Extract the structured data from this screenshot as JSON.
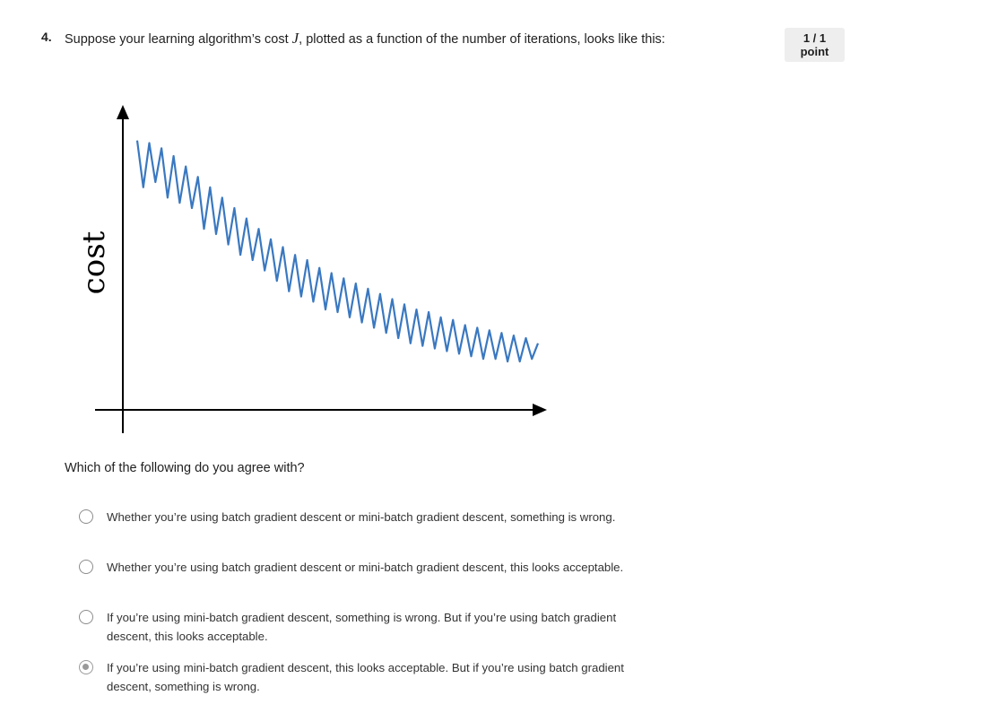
{
  "question": {
    "number": "4.",
    "text_before": "Suppose your learning algorithm’s cost ",
    "math_symbol": "J",
    "text_after": ", plotted as a function of the number of iterations, looks like this:",
    "points": "1 / 1 point",
    "prompt": "Which of the following do you agree with?"
  },
  "chart_data": {
    "type": "line",
    "ylabel": "cost",
    "xlabel": "",
    "description_style": "noisy decreasing curve, hand-drawn",
    "series": [
      {
        "color": "#3a78c0",
        "values": [
          0.96,
          0.78,
          0.95,
          0.8,
          0.93,
          0.74,
          0.9,
          0.72,
          0.86,
          0.7,
          0.82,
          0.62,
          0.78,
          0.6,
          0.74,
          0.56,
          0.7,
          0.52,
          0.66,
          0.5,
          0.62,
          0.46,
          0.58,
          0.42,
          0.55,
          0.38,
          0.52,
          0.36,
          0.5,
          0.34,
          0.47,
          0.31,
          0.45,
          0.3,
          0.43,
          0.28,
          0.41,
          0.26,
          0.39,
          0.24,
          0.37,
          0.22,
          0.35,
          0.2,
          0.33,
          0.18,
          0.31,
          0.17,
          0.3,
          0.16,
          0.28,
          0.15,
          0.27,
          0.14,
          0.25,
          0.13,
          0.24,
          0.12,
          0.23,
          0.12,
          0.22,
          0.11,
          0.21,
          0.11,
          0.2,
          0.12,
          0.18
        ]
      }
    ]
  },
  "options": [
    {
      "text": "Whether you’re using batch gradient descent or mini-batch gradient descent, something is wrong.",
      "selected": false
    },
    {
      "text": "Whether you’re using batch gradient descent or mini-batch gradient descent, this looks acceptable.",
      "selected": false
    },
    {
      "text": "If you’re using mini-batch gradient descent, something is wrong. But if you’re using batch gradient descent, this looks acceptable.",
      "selected": false
    },
    {
      "text": "If you’re using mini-batch gradient descent, this looks acceptable. But if you’re using batch gradient descent, something is wrong.",
      "selected": true
    }
  ]
}
